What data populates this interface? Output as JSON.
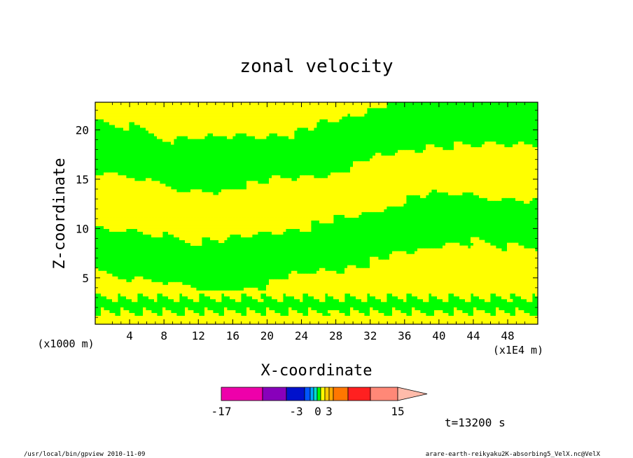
{
  "chart_data": {
    "type": "heatmap",
    "title": "zonal velocity",
    "xlabel": "X-coordinate",
    "ylabel": "Z-coordinate",
    "x_unit_label": "(x1E4 m)",
    "y_unit_label": "(x1000 m)",
    "xlim": [
      0,
      51.5
    ],
    "ylim": [
      0.3,
      22.8
    ],
    "x_ticks": [
      "4",
      "8",
      "12",
      "16",
      "20",
      "24",
      "28",
      "32",
      "36",
      "40",
      "44",
      "48"
    ],
    "y_ticks": [
      "5",
      "10",
      "15",
      "20"
    ],
    "colorbar": {
      "colors": [
        "#ee00aa",
        "#8800bb",
        "#0011cc",
        "#0055ff",
        "#00aaff",
        "#00ddcc",
        "#00ff00",
        "#ffff00",
        "#ffcc00",
        "#ffaa00",
        "#ff7700",
        "#ff2020",
        "#ff8877",
        "#ffbbaa"
      ],
      "tick_labels": [
        "-17",
        "-3",
        "0",
        "3",
        "15"
      ]
    },
    "time_label": "t=13200 s",
    "footer_left": "/usr/local/bin/gpview  2010-11-09",
    "footer_right": "arare-earth-reikyaku2K-absorbing5_VelX.nc@VelX",
    "field_colors": {
      "negative": "#00ff00",
      "positive": "#ffff00"
    }
  }
}
